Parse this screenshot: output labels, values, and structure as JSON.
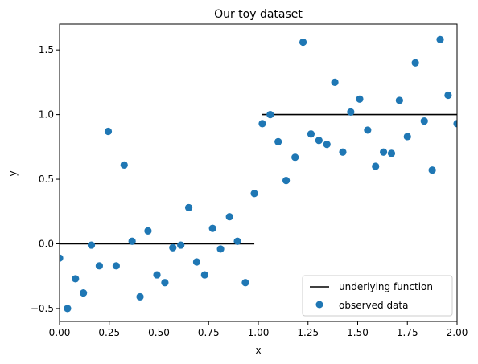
{
  "chart_data": {
    "type": "scatter",
    "title": "Our toy dataset",
    "xlabel": "x",
    "ylabel": "y",
    "xlim": [
      0,
      2
    ],
    "ylim": [
      -0.6,
      1.7
    ],
    "xticks": [
      "0.00",
      "0.25",
      "0.50",
      "0.75",
      "1.00",
      "1.25",
      "1.50",
      "1.75",
      "2.00"
    ],
    "yticks": [
      "−0.5",
      "0.0",
      "0.5",
      "1.0",
      "1.5"
    ],
    "grid": false,
    "legend_position": "lower-right",
    "colors": {
      "points": "#1f77b4",
      "function": "#000000"
    },
    "series": [
      {
        "name": "underlying function",
        "kind": "line",
        "segments": [
          {
            "x": [
              0.0,
              0.98
            ],
            "y": [
              0.0,
              0.0
            ]
          },
          {
            "x": [
              1.02,
              2.0
            ],
            "y": [
              1.0,
              1.0
            ]
          }
        ]
      },
      {
        "name": "observed data",
        "kind": "scatter",
        "x": [
          0.0,
          0.04,
          0.08,
          0.12,
          0.16,
          0.2,
          0.245,
          0.285,
          0.325,
          0.365,
          0.405,
          0.445,
          0.49,
          0.53,
          0.57,
          0.61,
          0.65,
          0.69,
          0.73,
          0.77,
          0.81,
          0.855,
          0.895,
          0.935,
          0.98,
          1.02,
          1.06,
          1.1,
          1.14,
          1.185,
          1.225,
          1.265,
          1.305,
          1.345,
          1.385,
          1.425,
          1.465,
          1.51,
          1.55,
          1.59,
          1.63,
          1.67,
          1.71,
          1.75,
          1.79,
          1.835,
          1.875,
          1.915,
          1.955,
          2.0
        ],
        "y": [
          -0.11,
          -0.5,
          -0.27,
          -0.38,
          -0.01,
          -0.17,
          0.87,
          -0.17,
          0.61,
          0.02,
          -0.41,
          0.1,
          -0.24,
          -0.3,
          -0.03,
          -0.01,
          0.28,
          -0.14,
          -0.24,
          0.12,
          -0.04,
          0.21,
          0.02,
          -0.3,
          0.39,
          0.93,
          1.0,
          0.79,
          0.49,
          0.67,
          1.56,
          0.85,
          0.8,
          0.77,
          1.25,
          0.71,
          1.02,
          1.12,
          0.88,
          0.6,
          0.71,
          0.7,
          1.11,
          0.83,
          1.4,
          0.95,
          0.57,
          1.58,
          1.15,
          0.93
        ]
      }
    ]
  }
}
